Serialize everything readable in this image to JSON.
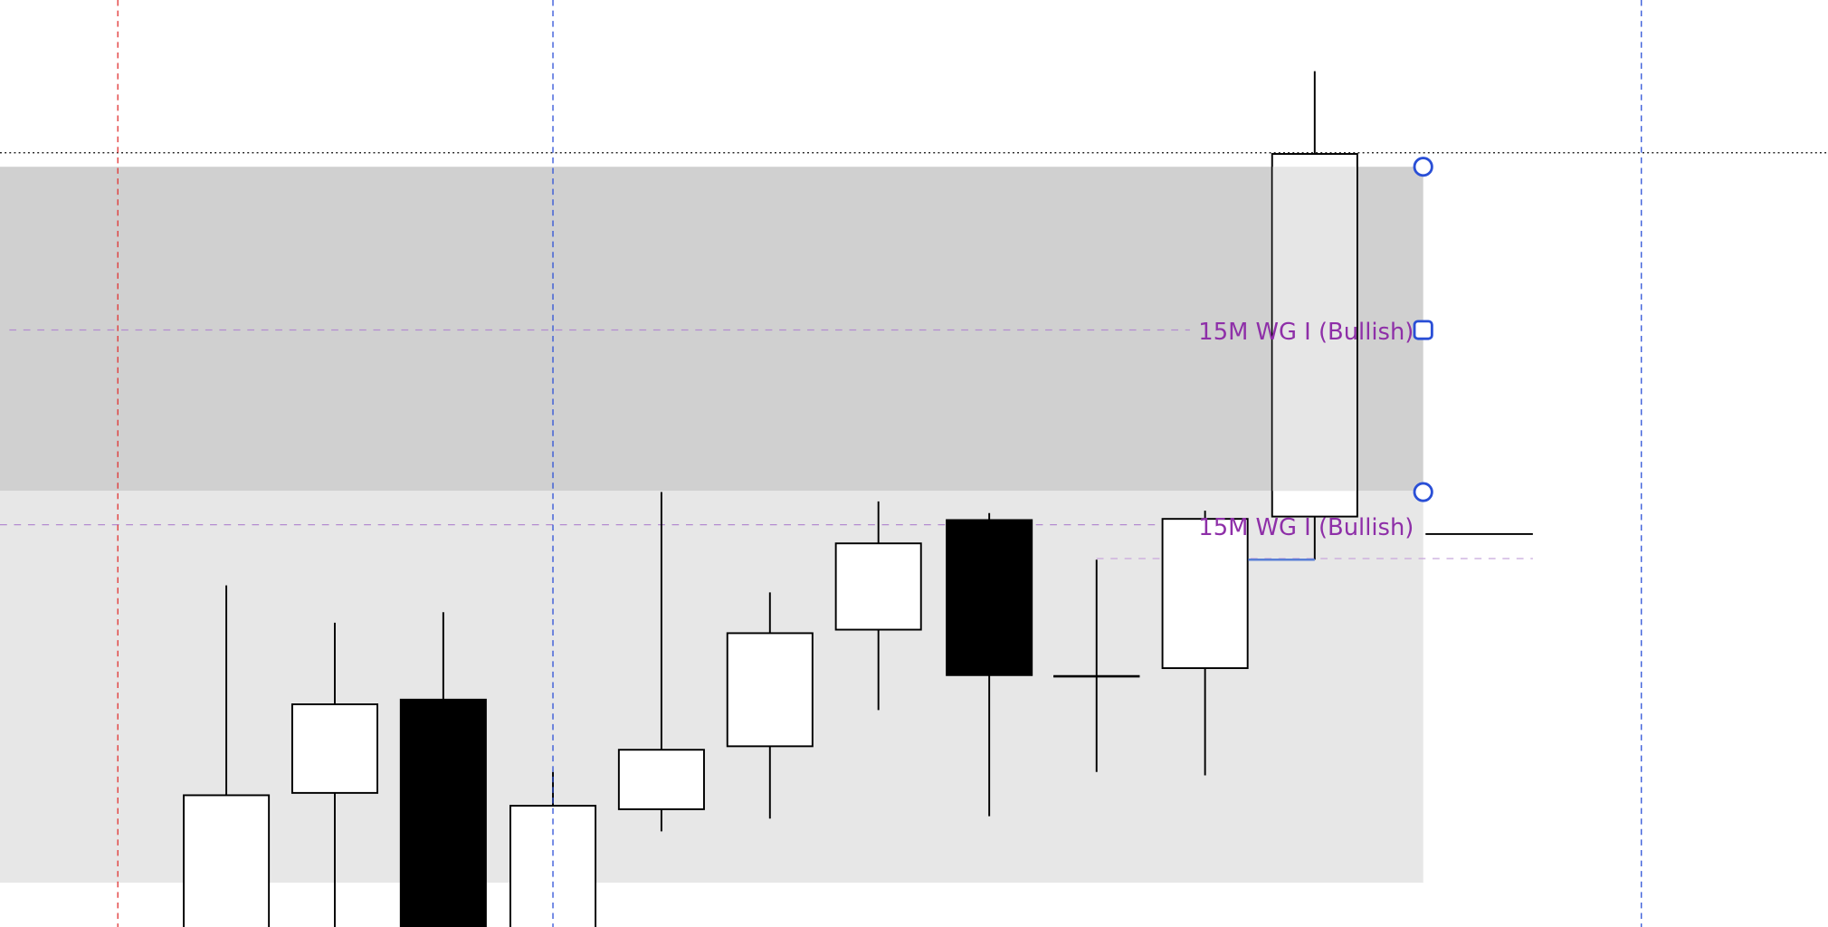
{
  "chart_data": {
    "type": "candlestick",
    "title": "",
    "xlabel": "",
    "ylabel": "",
    "grid": false,
    "colors": {
      "bullish_body": "#ffffff",
      "bearish_body": "#000000",
      "zone_upper": "#d0d0d0",
      "zone_lower": "#e7e7e7",
      "label": "#8e2fa8",
      "handle": "#2a4fd6",
      "vline_red": "#e0302f",
      "vline_blue": "#2a4fd6"
    },
    "ylim": [
      0,
      795
    ],
    "candles": [
      {
        "open": -5,
        "high": 293,
        "low": -5,
        "close": 113
      },
      {
        "open": 115,
        "high": 261,
        "low": -5,
        "close": 191
      },
      {
        "open": 195,
        "high": 270,
        "low": -5,
        "close": -5
      },
      {
        "open": -5,
        "high": 133,
        "low": -5,
        "close": 104
      },
      {
        "open": 101,
        "high": 373,
        "low": 82,
        "close": 152
      },
      {
        "open": 155,
        "high": 287,
        "low": 93,
        "close": 252
      },
      {
        "open": 255,
        "high": 365,
        "low": 186,
        "close": 329
      },
      {
        "open": 349,
        "high": 355,
        "low": 95,
        "close": 216
      },
      {
        "open": 215,
        "high": 315,
        "low": 133,
        "close": 215
      },
      {
        "open": 222,
        "high": 357,
        "low": 130,
        "close": 350
      },
      {
        "open": 352,
        "high": 734,
        "low": 315,
        "close": 663
      }
    ],
    "zones": [
      {
        "name": "upper",
        "top": 652,
        "bottom": 374
      },
      {
        "name": "lower",
        "top": 374,
        "bottom": 38
      }
    ],
    "levels": [
      {
        "label": "15M WG I (Bullish)",
        "value": 512
      },
      {
        "label": "15M WG I (Bullish)",
        "value": 345
      }
    ]
  }
}
